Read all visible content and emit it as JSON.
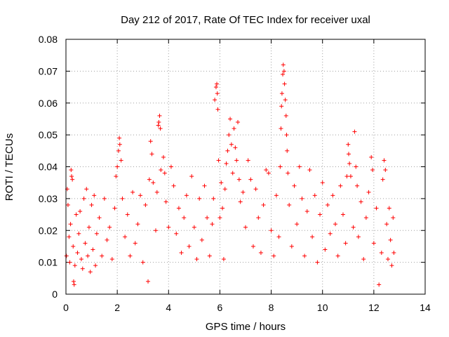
{
  "chart_data": {
    "type": "scatter",
    "title": "Day 212 of 2017, Rate Of TEC Index for receiver uxal",
    "xlabel": "GPS time / hours",
    "ylabel": "ROTI / TECUs",
    "xlim": [
      0,
      14
    ],
    "ylim": [
      0,
      0.08
    ],
    "xticks": [
      0,
      2,
      4,
      6,
      8,
      10,
      12,
      14
    ],
    "yticks": [
      0,
      0.01,
      0.02,
      0.03,
      0.04,
      0.05,
      0.06,
      0.07,
      0.08
    ],
    "xtick_labels": [
      "0",
      "2",
      "4",
      "6",
      "8",
      "10",
      "12",
      "14"
    ],
    "ytick_labels": [
      "0",
      "0.01",
      "0.02",
      "0.03",
      "0.04",
      "0.05",
      "0.06",
      "0.07",
      "0.08"
    ],
    "grid": true,
    "marker": "+",
    "color": "#ff0000",
    "series": [
      {
        "name": "ROTI",
        "points": [
          [
            0.02,
            0.012
          ],
          [
            0.05,
            0.033
          ],
          [
            0.08,
            0.028
          ],
          [
            0.12,
            0.018
          ],
          [
            0.15,
            0.01
          ],
          [
            0.18,
            0.022
          ],
          [
            0.2,
            0.039
          ],
          [
            0.22,
            0.037
          ],
          [
            0.25,
            0.036
          ],
          [
            0.28,
            0.015
          ],
          [
            0.3,
            0.004
          ],
          [
            0.32,
            0.003
          ],
          [
            0.35,
            0.009
          ],
          [
            0.4,
            0.025
          ],
          [
            0.45,
            0.013
          ],
          [
            0.5,
            0.019
          ],
          [
            0.55,
            0.026
          ],
          [
            0.6,
            0.011
          ],
          [
            0.65,
            0.008
          ],
          [
            0.7,
            0.03
          ],
          [
            0.75,
            0.016
          ],
          [
            0.8,
            0.033
          ],
          [
            0.85,
            0.012
          ],
          [
            0.9,
            0.021
          ],
          [
            0.95,
            0.007
          ],
          [
            1.0,
            0.028
          ],
          [
            1.05,
            0.014
          ],
          [
            1.1,
            0.031
          ],
          [
            1.15,
            0.009
          ],
          [
            1.2,
            0.019
          ],
          [
            1.3,
            0.024
          ],
          [
            1.4,
            0.012
          ],
          [
            1.5,
            0.03
          ],
          [
            1.6,
            0.017
          ],
          [
            1.7,
            0.021
          ],
          [
            1.8,
            0.011
          ],
          [
            1.9,
            0.027
          ],
          [
            1.95,
            0.037
          ],
          [
            2.0,
            0.04
          ],
          [
            2.05,
            0.045
          ],
          [
            2.08,
            0.049
          ],
          [
            2.1,
            0.047
          ],
          [
            2.15,
            0.042
          ],
          [
            2.2,
            0.03
          ],
          [
            2.3,
            0.018
          ],
          [
            2.4,
            0.025
          ],
          [
            2.5,
            0.012
          ],
          [
            2.6,
            0.032
          ],
          [
            2.7,
            0.016
          ],
          [
            2.8,
            0.022
          ],
          [
            2.9,
            0.031
          ],
          [
            3.0,
            0.01
          ],
          [
            3.1,
            0.028
          ],
          [
            3.2,
            0.004
          ],
          [
            3.25,
            0.036
          ],
          [
            3.3,
            0.048
          ],
          [
            3.35,
            0.044
          ],
          [
            3.4,
            0.035
          ],
          [
            3.5,
            0.02
          ],
          [
            3.55,
            0.032
          ],
          [
            3.6,
            0.053
          ],
          [
            3.62,
            0.054
          ],
          [
            3.65,
            0.056
          ],
          [
            3.68,
            0.052
          ],
          [
            3.7,
            0.039
          ],
          [
            3.8,
            0.043
          ],
          [
            3.85,
            0.038
          ],
          [
            3.9,
            0.029
          ],
          [
            4.0,
            0.021
          ],
          [
            4.1,
            0.04
          ],
          [
            4.2,
            0.034
          ],
          [
            4.3,
            0.019
          ],
          [
            4.4,
            0.027
          ],
          [
            4.5,
            0.013
          ],
          [
            4.6,
            0.024
          ],
          [
            4.7,
            0.031
          ],
          [
            4.8,
            0.015
          ],
          [
            4.9,
            0.037
          ],
          [
            5.0,
            0.021
          ],
          [
            5.1,
            0.011
          ],
          [
            5.2,
            0.03
          ],
          [
            5.3,
            0.017
          ],
          [
            5.4,
            0.034
          ],
          [
            5.5,
            0.024
          ],
          [
            5.6,
            0.012
          ],
          [
            5.7,
            0.022
          ],
          [
            5.75,
            0.03
          ],
          [
            5.8,
            0.061
          ],
          [
            5.85,
            0.065
          ],
          [
            5.88,
            0.066
          ],
          [
            5.9,
            0.063
          ],
          [
            5.92,
            0.058
          ],
          [
            5.95,
            0.042
          ],
          [
            6.0,
            0.024
          ],
          [
            6.05,
            0.035
          ],
          [
            6.1,
            0.027
          ],
          [
            6.15,
            0.011
          ],
          [
            6.2,
            0.033
          ],
          [
            6.25,
            0.041
          ],
          [
            6.3,
            0.045
          ],
          [
            6.35,
            0.05
          ],
          [
            6.4,
            0.055
          ],
          [
            6.45,
            0.047
          ],
          [
            6.5,
            0.038
          ],
          [
            6.55,
            0.052
          ],
          [
            6.6,
            0.046
          ],
          [
            6.65,
            0.042
          ],
          [
            6.7,
            0.054
          ],
          [
            6.75,
            0.036
          ],
          [
            6.8,
            0.029
          ],
          [
            6.9,
            0.032
          ],
          [
            7.0,
            0.021
          ],
          [
            7.1,
            0.042
          ],
          [
            7.2,
            0.036
          ],
          [
            7.3,
            0.015
          ],
          [
            7.4,
            0.033
          ],
          [
            7.5,
            0.024
          ],
          [
            7.6,
            0.013
          ],
          [
            7.7,
            0.028
          ],
          [
            7.8,
            0.039
          ],
          [
            7.9,
            0.038
          ],
          [
            8.0,
            0.02
          ],
          [
            8.1,
            0.012
          ],
          [
            8.2,
            0.031
          ],
          [
            8.3,
            0.018
          ],
          [
            8.35,
            0.04
          ],
          [
            8.38,
            0.052
          ],
          [
            8.4,
            0.059
          ],
          [
            8.42,
            0.063
          ],
          [
            8.45,
            0.069
          ],
          [
            8.47,
            0.072
          ],
          [
            8.5,
            0.07
          ],
          [
            8.52,
            0.066
          ],
          [
            8.55,
            0.061
          ],
          [
            8.58,
            0.056
          ],
          [
            8.6,
            0.05
          ],
          [
            8.62,
            0.045
          ],
          [
            8.65,
            0.038
          ],
          [
            8.7,
            0.028
          ],
          [
            8.8,
            0.015
          ],
          [
            8.9,
            0.034
          ],
          [
            9.0,
            0.022
          ],
          [
            9.1,
            0.04
          ],
          [
            9.2,
            0.03
          ],
          [
            9.3,
            0.012
          ],
          [
            9.4,
            0.026
          ],
          [
            9.5,
            0.039
          ],
          [
            9.6,
            0.018
          ],
          [
            9.7,
            0.031
          ],
          [
            9.8,
            0.01
          ],
          [
            9.9,
            0.025
          ],
          [
            10.0,
            0.035
          ],
          [
            10.1,
            0.014
          ],
          [
            10.2,
            0.028
          ],
          [
            10.3,
            0.019
          ],
          [
            10.4,
            0.031
          ],
          [
            10.5,
            0.022
          ],
          [
            10.6,
            0.012
          ],
          [
            10.7,
            0.034
          ],
          [
            10.8,
            0.025
          ],
          [
            10.9,
            0.016
          ],
          [
            10.95,
            0.037
          ],
          [
            11.0,
            0.047
          ],
          [
            11.02,
            0.044
          ],
          [
            11.05,
            0.041
          ],
          [
            11.1,
            0.037
          ],
          [
            11.2,
            0.021
          ],
          [
            11.25,
            0.051
          ],
          [
            11.3,
            0.04
          ],
          [
            11.35,
            0.034
          ],
          [
            11.4,
            0.018
          ],
          [
            11.5,
            0.029
          ],
          [
            11.6,
            0.011
          ],
          [
            11.7,
            0.024
          ],
          [
            11.8,
            0.032
          ],
          [
            11.9,
            0.043
          ],
          [
            11.95,
            0.039
          ],
          [
            12.0,
            0.016
          ],
          [
            12.1,
            0.027
          ],
          [
            12.2,
            0.003
          ],
          [
            12.3,
            0.013
          ],
          [
            12.35,
            0.036
          ],
          [
            12.4,
            0.042
          ],
          [
            12.45,
            0.039
          ],
          [
            12.5,
            0.022
          ],
          [
            12.55,
            0.011
          ],
          [
            12.6,
            0.027
          ],
          [
            12.65,
            0.017
          ],
          [
            12.7,
            0.009
          ],
          [
            12.75,
            0.024
          ],
          [
            12.78,
            0.013
          ]
        ]
      }
    ]
  }
}
